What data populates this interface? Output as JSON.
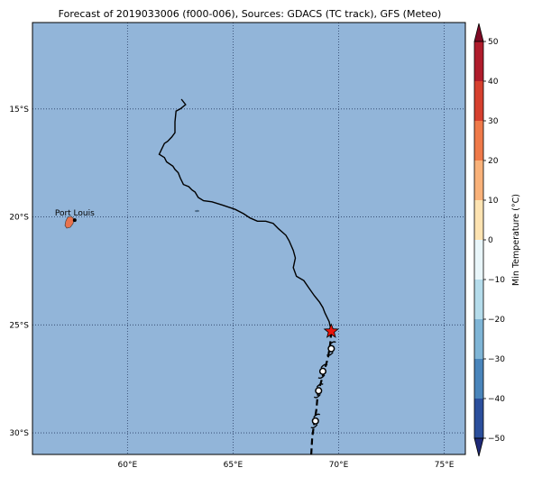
{
  "title": "Forecast of 2019033006 (f000-006), Sources: GDACS (TC track), GFS (Meteo)",
  "map": {
    "lon_range": [
      55.5,
      76
    ],
    "lat_range": [
      -31,
      -11
    ],
    "ocean_color": "#92b5d9",
    "land_color": "#e8734f",
    "grid_lons": [
      60,
      65,
      70,
      75
    ],
    "grid_lats": [
      -15,
      -20,
      -25,
      -30
    ],
    "lon_labels": [
      "60°E",
      "65°E",
      "70°E",
      "75°E"
    ],
    "lat_labels": [
      "15°S",
      "20°S",
      "25°S",
      "30°S"
    ],
    "place": {
      "name": "Port Louis",
      "lon": 57.5,
      "lat": -20.15
    },
    "past_track": [
      [
        62.55,
        -14.55
      ],
      [
        62.75,
        -14.8
      ],
      [
        62.5,
        -15.0
      ],
      [
        62.3,
        -15.1
      ],
      [
        62.25,
        -15.6
      ],
      [
        62.25,
        -16.1
      ],
      [
        62.1,
        -16.3
      ],
      [
        61.9,
        -16.5
      ],
      [
        61.75,
        -16.6
      ],
      [
        61.6,
        -16.9
      ],
      [
        61.55,
        -17.0
      ],
      [
        61.5,
        -17.1
      ],
      [
        61.75,
        -17.25
      ],
      [
        61.85,
        -17.45
      ],
      [
        62.15,
        -17.65
      ],
      [
        62.25,
        -17.8
      ],
      [
        62.4,
        -17.95
      ],
      [
        62.5,
        -18.2
      ],
      [
        62.65,
        -18.5
      ],
      [
        62.9,
        -18.6
      ],
      [
        63.05,
        -18.75
      ],
      [
        63.2,
        -18.85
      ],
      [
        63.35,
        -19.1
      ],
      [
        63.6,
        -19.25
      ],
      [
        64.0,
        -19.3
      ],
      [
        64.5,
        -19.45
      ],
      [
        65.1,
        -19.65
      ],
      [
        65.5,
        -19.85
      ],
      [
        65.8,
        -20.05
      ],
      [
        66.15,
        -20.2
      ],
      [
        66.55,
        -20.2
      ],
      [
        66.9,
        -20.3
      ],
      [
        67.15,
        -20.55
      ],
      [
        67.5,
        -20.85
      ],
      [
        67.65,
        -21.1
      ],
      [
        67.85,
        -21.55
      ],
      [
        67.95,
        -21.9
      ],
      [
        67.85,
        -22.35
      ],
      [
        68.0,
        -22.75
      ],
      [
        68.35,
        -22.95
      ],
      [
        68.6,
        -23.3
      ],
      [
        68.85,
        -23.65
      ],
      [
        69.1,
        -23.95
      ],
      [
        69.25,
        -24.2
      ],
      [
        69.35,
        -24.45
      ],
      [
        69.55,
        -24.85
      ],
      [
        69.65,
        -25.3
      ]
    ],
    "forecast_track": [
      [
        69.65,
        -25.3
      ],
      [
        69.6,
        -25.9
      ],
      [
        69.5,
        -26.5
      ],
      [
        69.3,
        -27.2
      ],
      [
        69.15,
        -27.7
      ],
      [
        69.0,
        -28.3
      ],
      [
        68.95,
        -28.9
      ],
      [
        68.85,
        -29.5
      ],
      [
        68.75,
        -30.2
      ],
      [
        68.7,
        -31.0
      ]
    ],
    "current_position": {
      "lon": 69.65,
      "lat": -25.3
    },
    "forecast_points": [
      {
        "lon": 69.65,
        "lat": -26.1
      },
      {
        "lon": 69.25,
        "lat": -27.15
      },
      {
        "lon": 69.05,
        "lat": -28.05
      },
      {
        "lon": 68.9,
        "lat": -29.45
      }
    ]
  },
  "colorbar": {
    "title": "Min Temperature (°C)",
    "ticks": [
      "50",
      "40",
      "30",
      "20",
      "10",
      "0",
      "−10",
      "−20",
      "−30",
      "−40",
      "−50"
    ],
    "colors": [
      "#7f0a25",
      "#b01c2c",
      "#d6402f",
      "#ef7a4a",
      "#f9b27a",
      "#fde3b2",
      "#e9f6fa",
      "#b5dceb",
      "#7fb5d6",
      "#4a85bb",
      "#2b4f9c",
      "#1f2a78"
    ]
  }
}
